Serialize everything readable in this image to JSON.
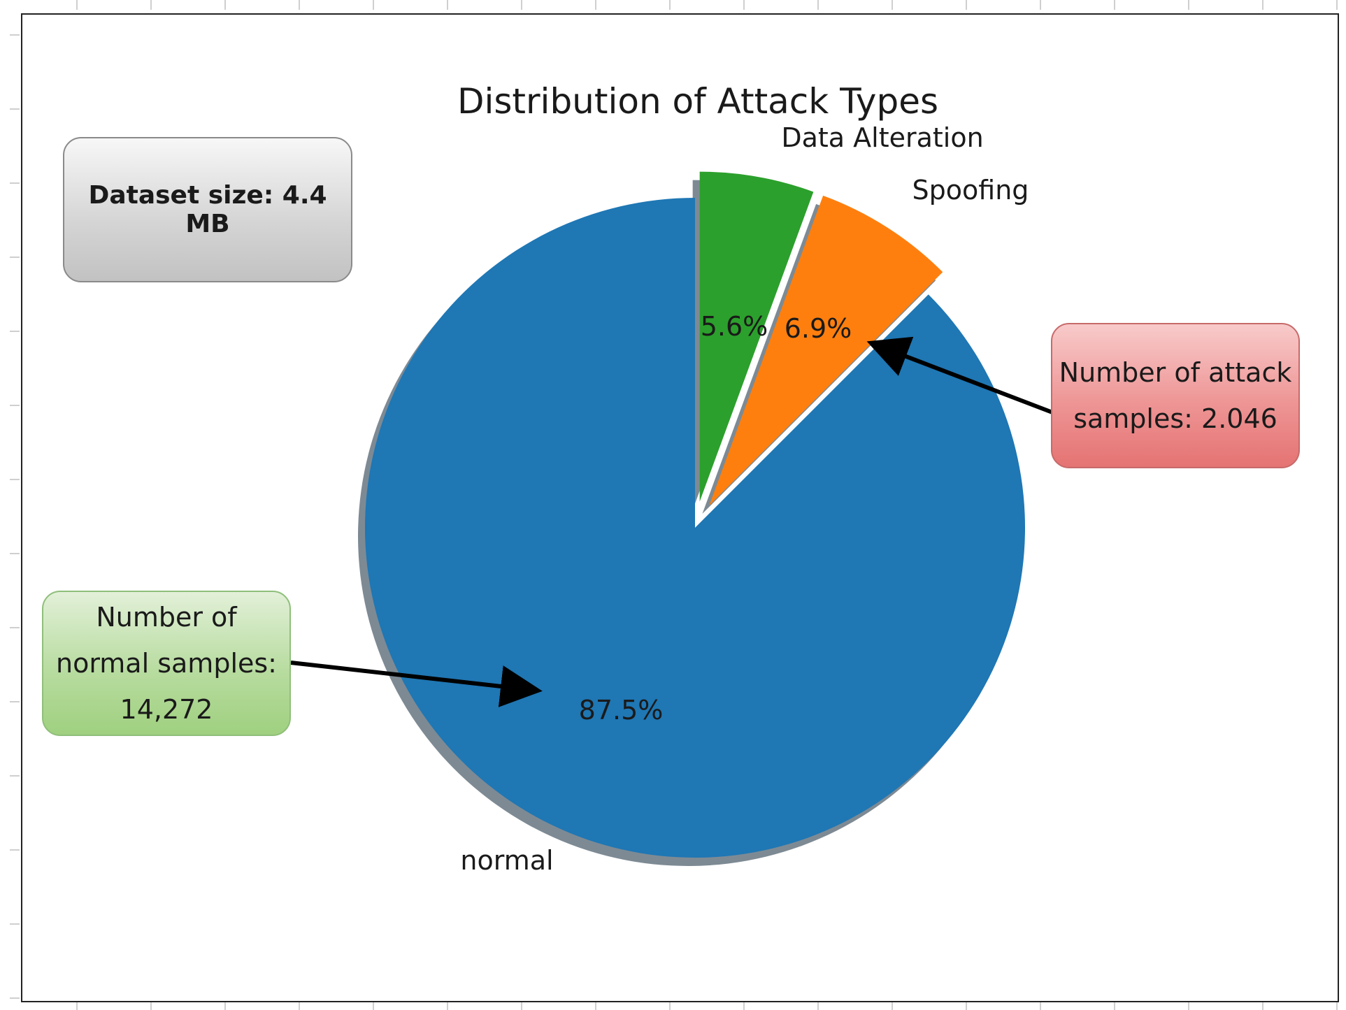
{
  "chart_data": {
    "type": "pie",
    "title": "Distribution of Attack Types",
    "slices": [
      {
        "label": "normal",
        "percent": 87.5,
        "percent_label": "87.5%",
        "color": "#1f77b4",
        "exploded": false
      },
      {
        "label": "Spoofing",
        "percent": 6.9,
        "percent_label": "6.9%",
        "color": "#ff7f0e",
        "exploded": true
      },
      {
        "label": "Data Alteration",
        "percent": 5.6,
        "percent_label": "5.6%",
        "color": "#2ca02c",
        "exploded": true
      }
    ],
    "start_angle_deg": 90,
    "direction": "clockwise",
    "shadow": true
  },
  "annotations": {
    "dataset_size": "Dataset size: 4.4 MB",
    "attack_samples_line1": "Number of attack",
    "attack_samples_line2": "samples: 2.046",
    "normal_samples_line1": "Number of",
    "normal_samples_line2": "normal samples:",
    "normal_samples_line3": "14,272",
    "attack_box_color": "#e57373",
    "normal_box_color": "#9fd07f",
    "dataset_box_color": "#d4d4d4"
  }
}
